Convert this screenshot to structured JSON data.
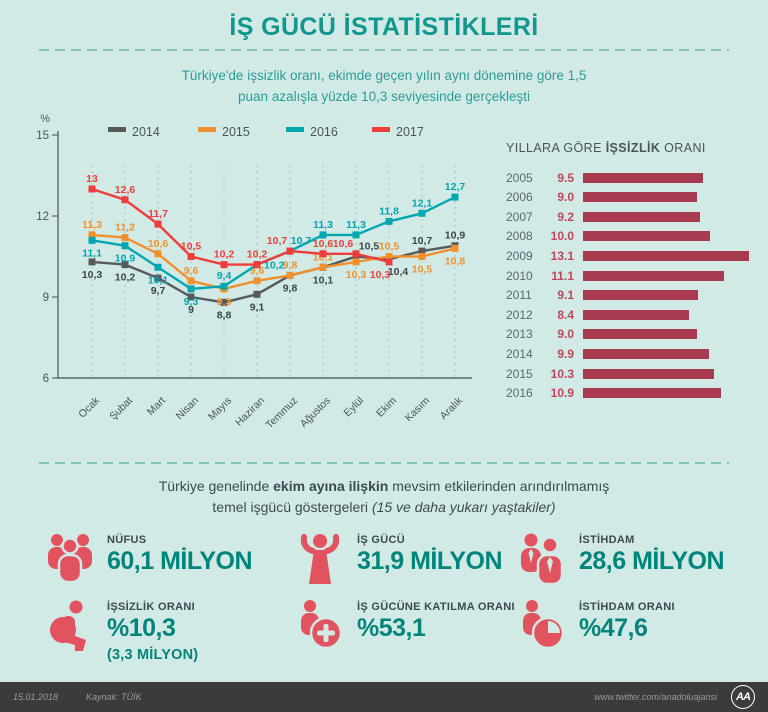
{
  "header": {
    "title": "İŞ GÜCÜ İSTATİSTİKLERİ",
    "subtitle_line1": "Türkiye'de işsizlik oranı, ekimde geçen yılın aynı dönemine göre 1,5",
    "subtitle_line2": "puan azalışla yüzde 10,3 seviyesinde gerçekleşti"
  },
  "chart_data": [
    {
      "type": "line",
      "ylabel": "%",
      "ylim": [
        6,
        15
      ],
      "yticks": [
        15,
        12,
        9,
        6
      ],
      "grid": "vertical-dashed",
      "legend_position": "top",
      "categories": [
        "Ocak",
        "Şubat",
        "Mart",
        "Nisan",
        "Mayıs",
        "Haziran",
        "Temmuz",
        "Ağustos",
        "Eylül",
        "Ekim",
        "Kasım",
        "Aralık"
      ],
      "series": [
        {
          "name": "2014",
          "color": "#58595b",
          "label_color": "#3d454b",
          "values": [
            10.3,
            10.2,
            9.7,
            9.0,
            8.8,
            9.1,
            9.8,
            10.1,
            10.5,
            10.4,
            10.7,
            10.9
          ],
          "labels": [
            "10,3",
            "10,2",
            "9,7",
            "9",
            "8,8",
            "9,1",
            "9,8",
            "10,1",
            "10,5",
            "10,4",
            "10,7",
            "10,9"
          ]
        },
        {
          "name": "2015",
          "color": "#f0912d",
          "label_color": "#f0912d",
          "values": [
            11.3,
            11.2,
            10.6,
            9.6,
            9.3,
            9.6,
            9.8,
            10.1,
            10.3,
            10.5,
            10.5,
            10.8
          ],
          "labels": [
            "11,3",
            "11,2",
            "10,6",
            "9,6",
            "9,3",
            "9,6",
            "9,8",
            "10,1",
            "10,3",
            "10,5",
            "10,5",
            "10,8"
          ]
        },
        {
          "name": "2016",
          "color": "#00a7b0",
          "label_color": "#00a7b0",
          "values": [
            11.1,
            10.9,
            10.1,
            9.3,
            9.4,
            10.2,
            10.7,
            11.3,
            11.3,
            11.8,
            12.1,
            12.7
          ],
          "labels": [
            "11,1",
            "10,9",
            "10,1",
            "9,3",
            "9,4",
            "10,2",
            "10,7",
            "11,3",
            "11,3",
            "11,8",
            "12,1",
            "12,7"
          ]
        },
        {
          "name": "2017",
          "color": "#ee3d3b",
          "label_color": "#ee3d3b",
          "values": [
            13.0,
            12.6,
            11.7,
            10.5,
            10.2,
            10.2,
            10.7,
            10.6,
            10.6,
            10.3
          ],
          "labels": [
            "13",
            "12,6",
            "11,7",
            "10,5",
            "10,2",
            "10,2",
            "10,7",
            "10,6",
            "10,6",
            "10,3"
          ]
        }
      ]
    },
    {
      "type": "bar",
      "title_regular1": "YILLARA GÖRE ",
      "title_bold": "İŞSİZLİK",
      "title_regular2": " ORANI",
      "categories": [
        "2005",
        "2006",
        "2007",
        "2008",
        "2009",
        "2010",
        "2011",
        "2012",
        "2013",
        "2014",
        "2015",
        "2016"
      ],
      "values": [
        9.5,
        9.0,
        9.2,
        10.0,
        13.1,
        11.1,
        9.1,
        8.4,
        9.0,
        9.9,
        10.3,
        10.9
      ],
      "labels": [
        "9.5",
        "9.0",
        "9.2",
        "10.0",
        "13.1",
        "11.1",
        "9.1",
        "8.4",
        "9.0",
        "9.9",
        "10.3",
        "10.9"
      ],
      "bar_color": "#a93b51",
      "xlim": [
        0,
        13.1
      ]
    }
  ],
  "mid_text": {
    "part1": "Türkiye genelinde ",
    "bold": "ekim ayına ilişkin",
    "part2": " mevsim etkilerinden arındırılmamış",
    "line2_regular": "temel işgücü göstergeleri ",
    "line2_italic": "(15 ve daha yukarı yaştakiler)"
  },
  "stats": [
    {
      "icon": "population-icon",
      "label": "NÜFUS",
      "value": "60,1 MİLYON",
      "sub": ""
    },
    {
      "icon": "labor-force-icon",
      "label": "İŞ GÜCÜ",
      "value": "31,9 MİLYON",
      "sub": ""
    },
    {
      "icon": "employment-icon",
      "label": "İSTİHDAM",
      "value": "28,6 MİLYON",
      "sub": ""
    },
    {
      "icon": "unemployment-rate-icon",
      "label": "İŞSİZLİK ORANI",
      "value": "%10,3",
      "sub": "(3,3 MİLYON)"
    },
    {
      "icon": "participation-rate-icon",
      "label": "İŞ GÜCÜNE KATILMA ORANI",
      "value": "%53,1",
      "sub": ""
    },
    {
      "icon": "employment-rate-icon",
      "label": "İSTİHDAM ORANI",
      "value": "%47,6",
      "sub": ""
    }
  ],
  "footer": {
    "date": "15.01.2018",
    "source": "Kaynak: TÜİK",
    "url": "www.twitter.com/anadoluajansi",
    "logo": "AA"
  },
  "colors": {
    "background": "#d2eae6",
    "title_teal": "#12968e",
    "subtitle_teal": "#2d9c95",
    "divider_teal": "#82c5be",
    "text_dark": "#3c4a50",
    "stat_value_teal": "#00857c",
    "stat_icon_red": "#e25360",
    "bar_maroon": "#a93b51",
    "bar_value_red": "#c2455a",
    "footer_bg": "#3b3b3b",
    "footer_text": "#9b9b99"
  }
}
